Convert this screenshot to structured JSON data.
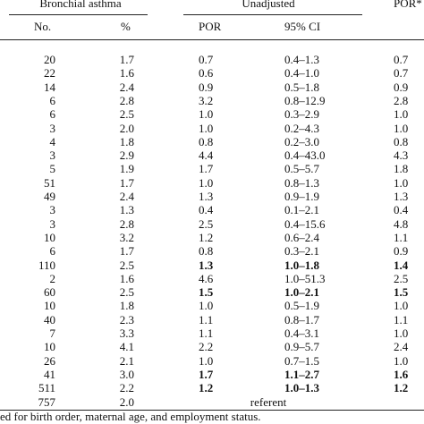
{
  "table": {
    "group_headers": [
      "Bronchial asthma",
      "Unadjusted",
      "POR*"
    ],
    "columns": [
      "No.",
      "%",
      "POR",
      "95% CI"
    ],
    "rows": [
      {
        "cells": [
          "20",
          "1.7",
          "0.7",
          "0.4–1.3",
          "0.7"
        ]
      },
      {
        "cells": [
          "22",
          "1.6",
          "0.6",
          "0.4–1.0",
          "0.7"
        ]
      },
      {
        "cells": [
          "14",
          "2.4",
          "0.9",
          "0.5–1.8",
          "0.9"
        ]
      },
      {
        "cells": [
          "6",
          "2.8",
          "3.2",
          "0.8–12.9",
          "2.8"
        ]
      },
      {
        "cells": [
          "6",
          "2.5",
          "1.0",
          "0.3–2.9",
          "1.0"
        ]
      },
      {
        "cells": [
          "3",
          "2.0",
          "1.0",
          "0.2–4.3",
          "1.0"
        ]
      },
      {
        "cells": [
          "4",
          "1.8",
          "0.8",
          "0.2–3.0",
          "0.8"
        ]
      },
      {
        "cells": [
          "3",
          "2.9",
          "4.4",
          "0.4–43.0",
          "4.3"
        ]
      },
      {
        "cells": [
          "5",
          "1.9",
          "1.7",
          "0.5–5.7",
          "1.8"
        ]
      },
      {
        "cells": [
          "51",
          "1.7",
          "1.0",
          "0.8–1.3",
          "1.0"
        ]
      },
      {
        "cells": [
          "49",
          "2.4",
          "1.3",
          "0.9–1.9",
          "1.3"
        ]
      },
      {
        "cells": [
          "3",
          "1.3",
          "0.4",
          "0.1–2.1",
          "0.4"
        ]
      },
      {
        "cells": [
          "3",
          "2.8",
          "2.5",
          "0.4–15.6",
          "4.8"
        ]
      },
      {
        "cells": [
          "10",
          "3.2",
          "1.2",
          "0.6–2.4",
          "1.1"
        ]
      },
      {
        "cells": [
          "6",
          "1.7",
          "0.8",
          "0.3–2.1",
          "0.9"
        ]
      },
      {
        "cells": [
          "110",
          "2.5",
          "1.3",
          "1.0–1.8",
          "1.4"
        ],
        "bold": true
      },
      {
        "cells": [
          "2",
          "1.6",
          "4.6",
          "1.0–51.3",
          "2.5"
        ]
      },
      {
        "cells": [
          "60",
          "2.5",
          "1.5",
          "1.0–2.1",
          "1.5"
        ],
        "bold": true
      },
      {
        "cells": [
          "10",
          "1.8",
          "1.0",
          "0.5–1.9",
          "1.0"
        ]
      },
      {
        "cells": [
          "40",
          "2.3",
          "1.1",
          "0.8–1.7",
          "1.1"
        ]
      },
      {
        "cells": [
          "7",
          "3.3",
          "1.1",
          "0.4–3.1",
          "1.0"
        ]
      },
      {
        "cells": [
          "10",
          "4.1",
          "2.2",
          "0.9–5.7",
          "2.4"
        ]
      },
      {
        "cells": [
          "26",
          "2.1",
          "1.0",
          "0.7–1.5",
          "1.0"
        ]
      },
      {
        "cells": [
          "41",
          "3.0",
          "1.7",
          "1.1–2.7",
          "1.6"
        ],
        "bold": true
      },
      {
        "cells": [
          "511",
          "2.2",
          "1.2",
          "1.0–1.3",
          "1.2"
        ],
        "bold": true
      },
      {
        "cells": [
          "757",
          "2.0",
          "referent"
        ]
      }
    ]
  },
  "footnote": "ed for birth order, maternal age, and employment status."
}
